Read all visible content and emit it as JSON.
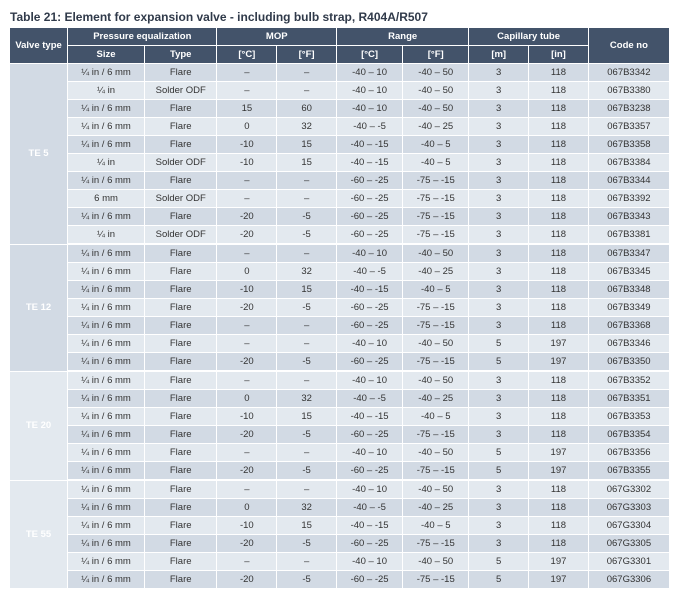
{
  "title": "Table 21: Element for expansion valve - including bulb strap, R404A/R507",
  "colors": {
    "header_bg": "#43536a",
    "header_fg": "#ffffff",
    "row_odd": "#d2dae4",
    "row_even": "#e3e9ef",
    "title_color": "#303a4a"
  },
  "header": {
    "valve_type": "Valve type",
    "pressure_eq": "Pressure equalization",
    "mop": "MOP",
    "range": "Range",
    "capillary": "Capillary tube",
    "code_no": "Code no",
    "size": "Size",
    "type": "Type",
    "mop_c": "[°C]",
    "mop_f": "[°F]",
    "range_c": "[°C]",
    "range_f": "[°F]",
    "cap_m": "[m]",
    "cap_in": "[in]"
  },
  "groups": [
    {
      "valve": "TE 5",
      "rows": [
        {
          "size": "¼ in / 6 mm",
          "type": "Flare",
          "mc": "–",
          "mf": "–",
          "rc": "-40 – 10",
          "rf": "-40 – 50",
          "cm": "3",
          "ci": "118",
          "code": "067B3342"
        },
        {
          "size": "¼ in",
          "type": "Solder ODF",
          "mc": "–",
          "mf": "–",
          "rc": "-40 – 10",
          "rf": "-40 – 50",
          "cm": "3",
          "ci": "118",
          "code": "067B3380"
        },
        {
          "size": "¼ in / 6 mm",
          "type": "Flare",
          "mc": "15",
          "mf": "60",
          "rc": "-40 – 10",
          "rf": "-40 – 50",
          "cm": "3",
          "ci": "118",
          "code": "067B3238"
        },
        {
          "size": "¼ in / 6 mm",
          "type": "Flare",
          "mc": "0",
          "mf": "32",
          "rc": "-40 – -5",
          "rf": "-40 – 25",
          "cm": "3",
          "ci": "118",
          "code": "067B3357"
        },
        {
          "size": "¼ in / 6 mm",
          "type": "Flare",
          "mc": "-10",
          "mf": "15",
          "rc": "-40 – -15",
          "rf": "-40 – 5",
          "cm": "3",
          "ci": "118",
          "code": "067B3358"
        },
        {
          "size": "¼ in",
          "type": "Solder ODF",
          "mc": "-10",
          "mf": "15",
          "rc": "-40 – -15",
          "rf": "-40 – 5",
          "cm": "3",
          "ci": "118",
          "code": "067B3384"
        },
        {
          "size": "¼ in / 6 mm",
          "type": "Flare",
          "mc": "–",
          "mf": "–",
          "rc": "-60 – -25",
          "rf": "-75 – -15",
          "cm": "3",
          "ci": "118",
          "code": "067B3344"
        },
        {
          "size": "6 mm",
          "type": "Solder ODF",
          "mc": "–",
          "mf": "–",
          "rc": "-60 – -25",
          "rf": "-75 – -15",
          "cm": "3",
          "ci": "118",
          "code": "067B3392"
        },
        {
          "size": "¼ in / 6 mm",
          "type": "Flare",
          "mc": "-20",
          "mf": "-5",
          "rc": "-60 – -25",
          "rf": "-75 – -15",
          "cm": "3",
          "ci": "118",
          "code": "067B3343"
        },
        {
          "size": "¼ in",
          "type": "Solder ODF",
          "mc": "-20",
          "mf": "-5",
          "rc": "-60 – -25",
          "rf": "-75 – -15",
          "cm": "3",
          "ci": "118",
          "code": "067B3381"
        }
      ]
    },
    {
      "valve": "TE 12",
      "rows": [
        {
          "size": "¼ in / 6 mm",
          "type": "Flare",
          "mc": "–",
          "mf": "–",
          "rc": "-40 – 10",
          "rf": "-40 – 50",
          "cm": "3",
          "ci": "118",
          "code": "067B3347"
        },
        {
          "size": "¼ in / 6 mm",
          "type": "Flare",
          "mc": "0",
          "mf": "32",
          "rc": "-40 – -5",
          "rf": "-40 – 25",
          "cm": "3",
          "ci": "118",
          "code": "067B3345"
        },
        {
          "size": "¼ in / 6 mm",
          "type": "Flare",
          "mc": "-10",
          "mf": "15",
          "rc": "-40 – -15",
          "rf": "-40 – 5",
          "cm": "3",
          "ci": "118",
          "code": "067B3348"
        },
        {
          "size": "¼ in / 6 mm",
          "type": "Flare",
          "mc": "-20",
          "mf": "-5",
          "rc": "-60 – -25",
          "rf": "-75 – -15",
          "cm": "3",
          "ci": "118",
          "code": "067B3349"
        },
        {
          "size": "¼ in / 6 mm",
          "type": "Flare",
          "mc": "–",
          "mf": "–",
          "rc": "-60 – -25",
          "rf": "-75 – -15",
          "cm": "3",
          "ci": "118",
          "code": "067B3368"
        },
        {
          "size": "¼ in / 6 mm",
          "type": "Flare",
          "mc": "–",
          "mf": "–",
          "rc": "-40 – 10",
          "rf": "-40 – 50",
          "cm": "5",
          "ci": "197",
          "code": "067B3346"
        },
        {
          "size": "¼ in / 6 mm",
          "type": "Flare",
          "mc": "-20",
          "mf": "-5",
          "rc": "-60 – -25",
          "rf": "-75 – -15",
          "cm": "5",
          "ci": "197",
          "code": "067B3350"
        }
      ]
    },
    {
      "valve": "TE 20",
      "rows": [
        {
          "size": "¼ in / 6 mm",
          "type": "Flare",
          "mc": "–",
          "mf": "–",
          "rc": "-40 – 10",
          "rf": "-40 – 50",
          "cm": "3",
          "ci": "118",
          "code": "067B3352"
        },
        {
          "size": "¼ in / 6 mm",
          "type": "Flare",
          "mc": "0",
          "mf": "32",
          "rc": "-40 – -5",
          "rf": "-40 – 25",
          "cm": "3",
          "ci": "118",
          "code": "067B3351"
        },
        {
          "size": "¼ in / 6 mm",
          "type": "Flare",
          "mc": "-10",
          "mf": "15",
          "rc": "-40 – -15",
          "rf": "-40 – 5",
          "cm": "3",
          "ci": "118",
          "code": "067B3353"
        },
        {
          "size": "¼ in / 6 mm",
          "type": "Flare",
          "mc": "-20",
          "mf": "-5",
          "rc": "-60 – -25",
          "rf": "-75 – -15",
          "cm": "3",
          "ci": "118",
          "code": "067B3354"
        },
        {
          "size": "¼ in / 6 mm",
          "type": "Flare",
          "mc": "–",
          "mf": "–",
          "rc": "-40 – 10",
          "rf": "-40 – 50",
          "cm": "5",
          "ci": "197",
          "code": "067B3356"
        },
        {
          "size": "¼ in / 6 mm",
          "type": "Flare",
          "mc": "-20",
          "mf": "-5",
          "rc": "-60 – -25",
          "rf": "-75 – -15",
          "cm": "5",
          "ci": "197",
          "code": "067B3355"
        }
      ]
    },
    {
      "valve": "TE 55",
      "rows": [
        {
          "size": "¼ in / 6 mm",
          "type": "Flare",
          "mc": "–",
          "mf": "–",
          "rc": "-40 – 10",
          "rf": "-40 – 50",
          "cm": "3",
          "ci": "118",
          "code": "067G3302"
        },
        {
          "size": "¼ in / 6 mm",
          "type": "Flare",
          "mc": "0",
          "mf": "32",
          "rc": "-40 – -5",
          "rf": "-40 – 25",
          "cm": "3",
          "ci": "118",
          "code": "067G3303"
        },
        {
          "size": "¼ in / 6 mm",
          "type": "Flare",
          "mc": "-10",
          "mf": "15",
          "rc": "-40 – -15",
          "rf": "-40 – 5",
          "cm": "3",
          "ci": "118",
          "code": "067G3304"
        },
        {
          "size": "¼ in / 6 mm",
          "type": "Flare",
          "mc": "-20",
          "mf": "-5",
          "rc": "-60 – -25",
          "rf": "-75 – -15",
          "cm": "3",
          "ci": "118",
          "code": "067G3305"
        },
        {
          "size": "¼ in / 6 mm",
          "type": "Flare",
          "mc": "–",
          "mf": "–",
          "rc": "-40 – 10",
          "rf": "-40 – 50",
          "cm": "5",
          "ci": "197",
          "code": "067G3301"
        },
        {
          "size": "¼ in / 6 mm",
          "type": "Flare",
          "mc": "-20",
          "mf": "-5",
          "rc": "-60 – -25",
          "rf": "-75 – -15",
          "cm": "5",
          "ci": "197",
          "code": "067G3306"
        }
      ]
    }
  ]
}
